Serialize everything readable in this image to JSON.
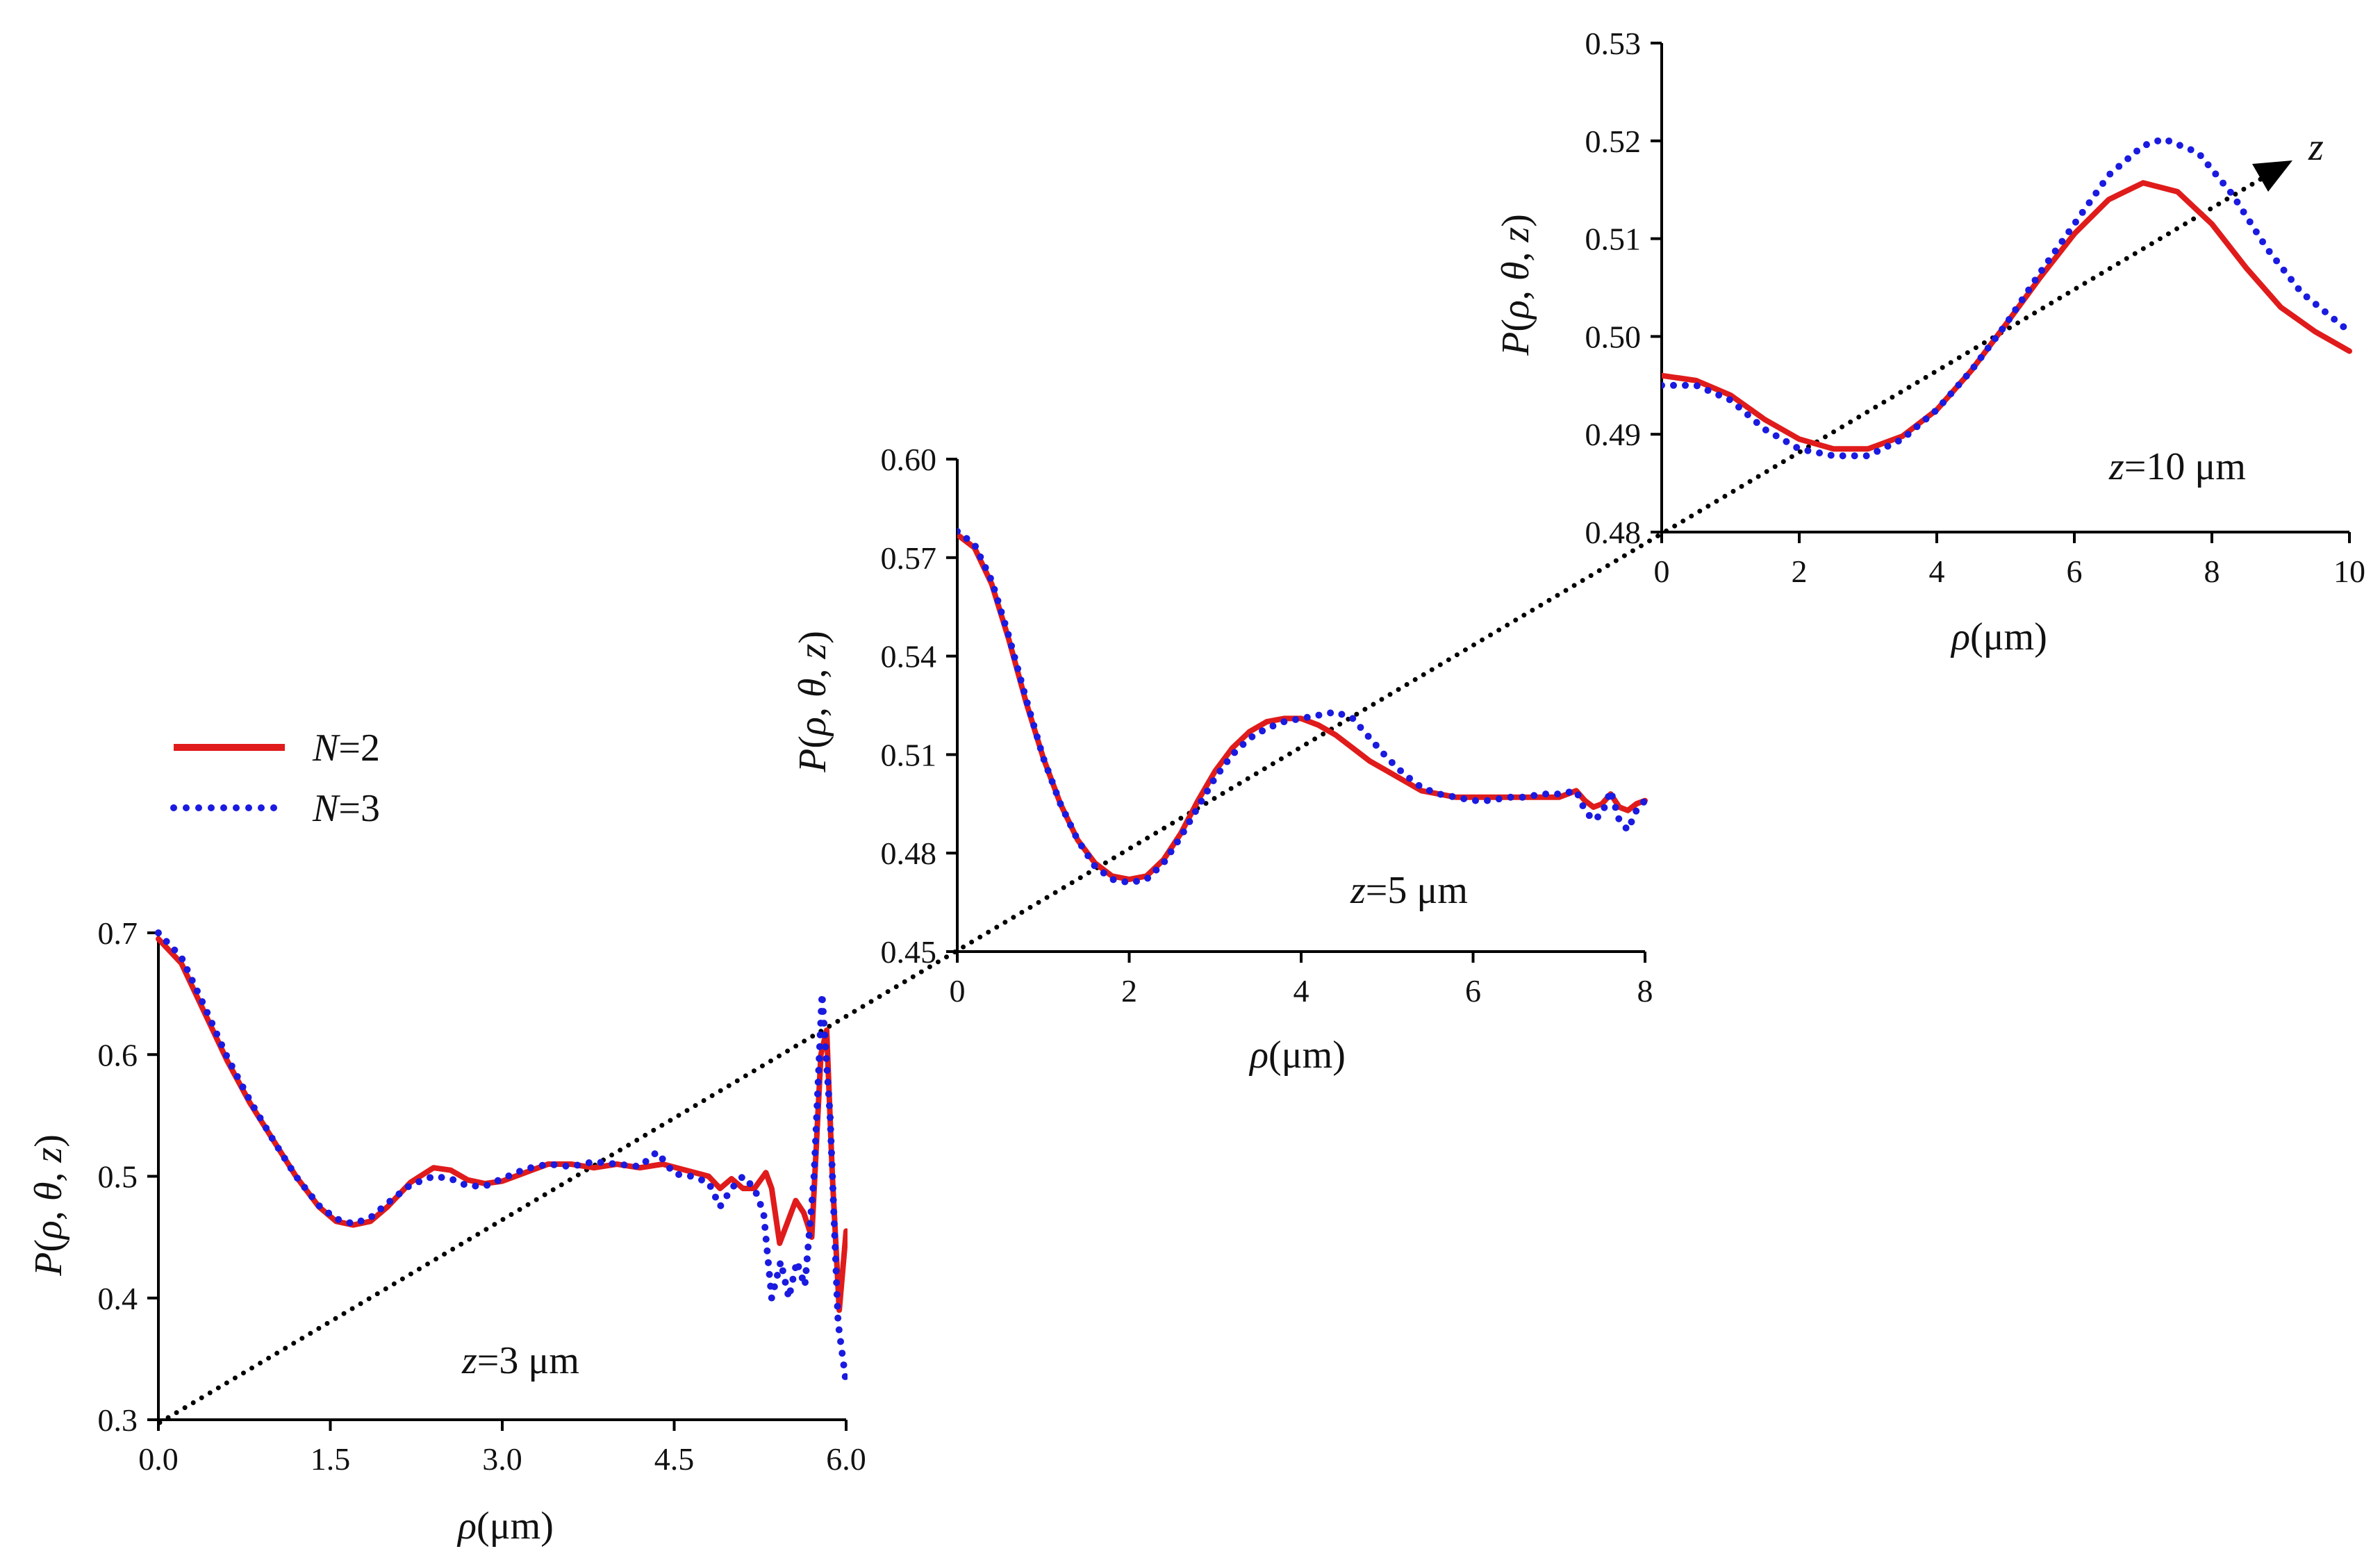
{
  "chart_data": [
    {
      "type": "line",
      "annotation": {
        "text_italic": "z",
        "text_rest": "=3 μm"
      },
      "xlabel": {
        "italic": "ρ",
        "rest": "(μm)"
      },
      "ylabel": {
        "p": "P",
        "open": "(",
        "rho": "ρ",
        "c1": ", ",
        "theta": "θ",
        "c2": ", ",
        "z": "z",
        "close": ")"
      },
      "xlim": [
        0,
        6
      ],
      "ylim": [
        0.3,
        0.7
      ],
      "xticks": [
        "0.0",
        "1.5",
        "3.0",
        "4.5",
        "6.0"
      ],
      "yticks": [
        "0.3",
        "0.4",
        "0.5",
        "0.6",
        "0.7"
      ],
      "series": [
        {
          "name": "N=2",
          "color": "#e01b1b",
          "style": "solid",
          "points": [
            [
              0,
              0.695
            ],
            [
              0.2,
              0.675
            ],
            [
              0.4,
              0.635
            ],
            [
              0.6,
              0.595
            ],
            [
              0.8,
              0.56
            ],
            [
              1.0,
              0.53
            ],
            [
              1.2,
              0.5
            ],
            [
              1.4,
              0.475
            ],
            [
              1.55,
              0.463
            ],
            [
              1.7,
              0.46
            ],
            [
              1.85,
              0.463
            ],
            [
              2.0,
              0.475
            ],
            [
              2.2,
              0.495
            ],
            [
              2.4,
              0.507
            ],
            [
              2.55,
              0.505
            ],
            [
              2.7,
              0.497
            ],
            [
              2.85,
              0.494
            ],
            [
              3.0,
              0.496
            ],
            [
              3.2,
              0.503
            ],
            [
              3.4,
              0.51
            ],
            [
              3.6,
              0.51
            ],
            [
              3.8,
              0.507
            ],
            [
              4.0,
              0.51
            ],
            [
              4.2,
              0.507
            ],
            [
              4.4,
              0.51
            ],
            [
              4.6,
              0.505
            ],
            [
              4.8,
              0.5
            ],
            [
              4.9,
              0.49
            ],
            [
              5.0,
              0.498
            ],
            [
              5.1,
              0.49
            ],
            [
              5.2,
              0.49
            ],
            [
              5.3,
              0.503
            ],
            [
              5.35,
              0.49
            ],
            [
              5.42,
              0.445
            ],
            [
              5.5,
              0.465
            ],
            [
              5.56,
              0.48
            ],
            [
              5.63,
              0.47
            ],
            [
              5.7,
              0.45
            ],
            [
              5.78,
              0.6
            ],
            [
              5.83,
              0.62
            ],
            [
              5.88,
              0.5
            ],
            [
              5.94,
              0.39
            ],
            [
              6.0,
              0.455
            ]
          ]
        },
        {
          "name": "N=3",
          "color": "#1a1ae0",
          "style": "dotted",
          "points": [
            [
              0,
              0.7
            ],
            [
              0.2,
              0.68
            ],
            [
              0.4,
              0.64
            ],
            [
              0.6,
              0.598
            ],
            [
              0.8,
              0.562
            ],
            [
              1.0,
              0.53
            ],
            [
              1.2,
              0.5
            ],
            [
              1.4,
              0.476
            ],
            [
              1.55,
              0.465
            ],
            [
              1.7,
              0.461
            ],
            [
              1.85,
              0.466
            ],
            [
              2.0,
              0.478
            ],
            [
              2.2,
              0.493
            ],
            [
              2.4,
              0.5
            ],
            [
              2.55,
              0.498
            ],
            [
              2.7,
              0.492
            ],
            [
              2.85,
              0.492
            ],
            [
              3.0,
              0.498
            ],
            [
              3.2,
              0.506
            ],
            [
              3.4,
              0.51
            ],
            [
              3.6,
              0.508
            ],
            [
              3.8,
              0.512
            ],
            [
              4.0,
              0.51
            ],
            [
              4.2,
              0.508
            ],
            [
              4.35,
              0.52
            ],
            [
              4.5,
              0.502
            ],
            [
              4.65,
              0.5
            ],
            [
              4.8,
              0.495
            ],
            [
              4.9,
              0.475
            ],
            [
              5.0,
              0.49
            ],
            [
              5.1,
              0.5
            ],
            [
              5.2,
              0.49
            ],
            [
              5.28,
              0.47
            ],
            [
              5.35,
              0.4
            ],
            [
              5.43,
              0.43
            ],
            [
              5.5,
              0.4
            ],
            [
              5.57,
              0.43
            ],
            [
              5.64,
              0.41
            ],
            [
              5.72,
              0.5
            ],
            [
              5.79,
              0.65
            ],
            [
              5.86,
              0.55
            ],
            [
              5.93,
              0.38
            ],
            [
              6.0,
              0.33
            ]
          ]
        }
      ]
    },
    {
      "type": "line",
      "annotation": {
        "text_italic": "z",
        "text_rest": "=5 μm"
      },
      "xlabel": {
        "italic": "ρ",
        "rest": "(μm)"
      },
      "ylabel": {
        "p": "P",
        "open": "(",
        "rho": "ρ",
        "c1": ", ",
        "theta": "θ",
        "c2": ", ",
        "z": "z",
        "close": ")"
      },
      "xlim": [
        0,
        8
      ],
      "ylim": [
        0.45,
        0.6
      ],
      "xticks": [
        "0",
        "2",
        "4",
        "6",
        "8"
      ],
      "yticks": [
        "0.45",
        "0.48",
        "0.51",
        "0.54",
        "0.57",
        "0.60"
      ],
      "series": [
        {
          "name": "N=2",
          "color": "#e01b1b",
          "style": "solid",
          "points": [
            [
              0,
              0.577
            ],
            [
              0.2,
              0.573
            ],
            [
              0.4,
              0.562
            ],
            [
              0.6,
              0.545
            ],
            [
              0.8,
              0.526
            ],
            [
              1.0,
              0.509
            ],
            [
              1.2,
              0.495
            ],
            [
              1.4,
              0.484
            ],
            [
              1.6,
              0.477
            ],
            [
              1.8,
              0.473
            ],
            [
              2.0,
              0.472
            ],
            [
              2.2,
              0.473
            ],
            [
              2.4,
              0.478
            ],
            [
              2.6,
              0.486
            ],
            [
              2.8,
              0.496
            ],
            [
              3.0,
              0.505
            ],
            [
              3.2,
              0.512
            ],
            [
              3.4,
              0.517
            ],
            [
              3.6,
              0.52
            ],
            [
              3.8,
              0.521
            ],
            [
              4.0,
              0.521
            ],
            [
              4.2,
              0.519
            ],
            [
              4.4,
              0.516
            ],
            [
              4.6,
              0.512
            ],
            [
              4.8,
              0.508
            ],
            [
              5.0,
              0.505
            ],
            [
              5.2,
              0.502
            ],
            [
              5.4,
              0.499
            ],
            [
              5.6,
              0.498
            ],
            [
              5.8,
              0.497
            ],
            [
              6.0,
              0.497
            ],
            [
              6.2,
              0.497
            ],
            [
              6.4,
              0.497
            ],
            [
              6.6,
              0.497
            ],
            [
              6.8,
              0.497
            ],
            [
              7.0,
              0.497
            ],
            [
              7.2,
              0.499
            ],
            [
              7.3,
              0.496
            ],
            [
              7.4,
              0.494
            ],
            [
              7.5,
              0.495
            ],
            [
              7.6,
              0.498
            ],
            [
              7.7,
              0.494
            ],
            [
              7.8,
              0.493
            ],
            [
              7.9,
              0.495
            ],
            [
              8.0,
              0.496
            ]
          ]
        },
        {
          "name": "N=3",
          "color": "#1a1ae0",
          "style": "dotted",
          "points": [
            [
              0,
              0.578
            ],
            [
              0.2,
              0.574
            ],
            [
              0.4,
              0.563
            ],
            [
              0.6,
              0.546
            ],
            [
              0.8,
              0.527
            ],
            [
              1.0,
              0.509
            ],
            [
              1.2,
              0.495
            ],
            [
              1.4,
              0.484
            ],
            [
              1.6,
              0.476
            ],
            [
              1.8,
              0.472
            ],
            [
              2.0,
              0.471
            ],
            [
              2.2,
              0.472
            ],
            [
              2.4,
              0.477
            ],
            [
              2.6,
              0.485
            ],
            [
              2.8,
              0.494
            ],
            [
              3.0,
              0.503
            ],
            [
              3.2,
              0.51
            ],
            [
              3.4,
              0.515
            ],
            [
              3.6,
              0.518
            ],
            [
              3.8,
              0.52
            ],
            [
              4.0,
              0.521
            ],
            [
              4.2,
              0.522
            ],
            [
              4.4,
              0.523
            ],
            [
              4.6,
              0.521
            ],
            [
              4.8,
              0.515
            ],
            [
              5.0,
              0.509
            ],
            [
              5.2,
              0.504
            ],
            [
              5.4,
              0.5
            ],
            [
              5.6,
              0.498
            ],
            [
              5.8,
              0.497
            ],
            [
              6.0,
              0.496
            ],
            [
              6.2,
              0.496
            ],
            [
              6.4,
              0.497
            ],
            [
              6.6,
              0.497
            ],
            [
              6.8,
              0.498
            ],
            [
              7.0,
              0.498
            ],
            [
              7.2,
              0.499
            ],
            [
              7.3,
              0.493
            ],
            [
              7.4,
              0.49
            ],
            [
              7.5,
              0.492
            ],
            [
              7.6,
              0.499
            ],
            [
              7.7,
              0.49
            ],
            [
              7.8,
              0.487
            ],
            [
              7.9,
              0.493
            ],
            [
              8.0,
              0.496
            ]
          ]
        }
      ]
    },
    {
      "type": "line",
      "annotation": {
        "text_italic": "z",
        "text_rest": "=10 μm"
      },
      "xlabel": {
        "italic": "ρ",
        "rest": "(μm)"
      },
      "ylabel": {
        "p": "P",
        "open": "(",
        "rho": "ρ",
        "c1": ", ",
        "theta": "θ",
        "c2": ", ",
        "z": "z",
        "close": ")"
      },
      "xlim": [
        0,
        10
      ],
      "ylim": [
        0.48,
        0.53
      ],
      "xticks": [
        "0",
        "2",
        "4",
        "6",
        "8",
        "10"
      ],
      "yticks": [
        "0.48",
        "0.49",
        "0.50",
        "0.51",
        "0.52",
        "0.53"
      ],
      "series": [
        {
          "name": "N=2",
          "color": "#e01b1b",
          "style": "solid",
          "points": [
            [
              0,
              0.496
            ],
            [
              0.5,
              0.4955
            ],
            [
              1.0,
              0.494
            ],
            [
              1.5,
              0.4915
            ],
            [
              2.0,
              0.4895
            ],
            [
              2.5,
              0.4885
            ],
            [
              3.0,
              0.4885
            ],
            [
              3.5,
              0.4898
            ],
            [
              4.0,
              0.4925
            ],
            [
              4.5,
              0.4965
            ],
            [
              5.0,
              0.5012
            ],
            [
              5.5,
              0.506
            ],
            [
              6.0,
              0.5105
            ],
            [
              6.5,
              0.514
            ],
            [
              7.0,
              0.5157
            ],
            [
              7.5,
              0.5148
            ],
            [
              8.0,
              0.5115
            ],
            [
              8.5,
              0.507
            ],
            [
              9.0,
              0.503
            ],
            [
              9.5,
              0.5005
            ],
            [
              10.0,
              0.4985
            ]
          ]
        },
        {
          "name": "N=3",
          "color": "#1a1ae0",
          "style": "dotted",
          "points": [
            [
              0,
              0.495
            ],
            [
              0.5,
              0.495
            ],
            [
              1.0,
              0.4935
            ],
            [
              1.5,
              0.4905
            ],
            [
              2.0,
              0.4885
            ],
            [
              2.5,
              0.4878
            ],
            [
              3.0,
              0.4878
            ],
            [
              3.5,
              0.4895
            ],
            [
              4.0,
              0.4925
            ],
            [
              4.5,
              0.4965
            ],
            [
              5.0,
              0.5012
            ],
            [
              5.5,
              0.5065
            ],
            [
              6.0,
              0.5115
            ],
            [
              6.5,
              0.5165
            ],
            [
              7.0,
              0.5195
            ],
            [
              7.3,
              0.5202
            ],
            [
              7.8,
              0.5188
            ],
            [
              8.3,
              0.5145
            ],
            [
              8.8,
              0.509
            ],
            [
              9.3,
              0.5045
            ],
            [
              10.0,
              0.5005
            ]
          ]
        }
      ]
    }
  ],
  "legend": [
    {
      "italic": "N",
      "rest": "=2",
      "color": "#e01b1b",
      "style": "solid"
    },
    {
      "italic": "N",
      "rest": "=3",
      "color": "#1a1ae0",
      "style": "dotted"
    }
  ],
  "z_axis_label": "z",
  "z_axis_color": "#000000"
}
